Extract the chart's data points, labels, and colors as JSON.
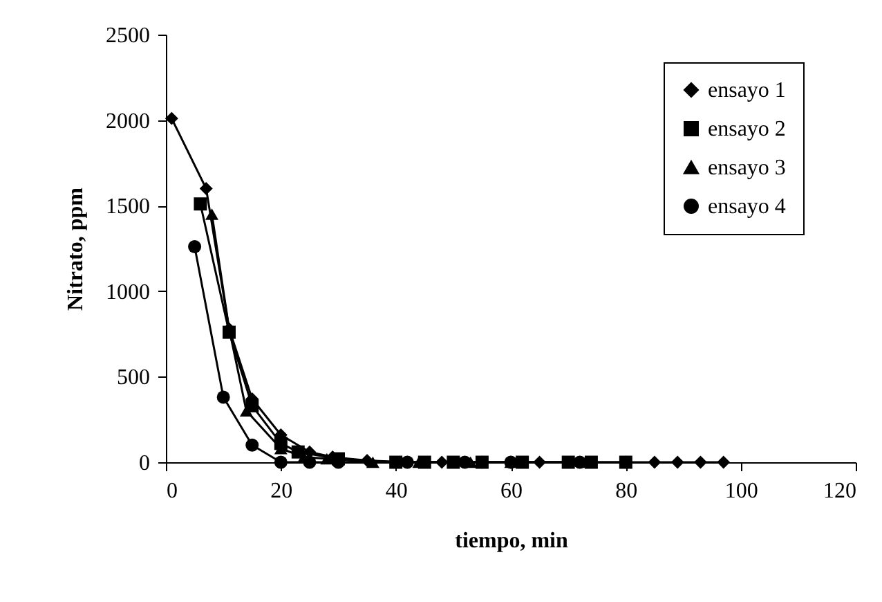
{
  "chart_data": {
    "type": "line",
    "xlabel": "tiempo, min",
    "ylabel": "Nitrato, ppm",
    "xlim": [
      0,
      120
    ],
    "xticks": [
      0,
      20,
      40,
      60,
      80,
      100,
      120
    ],
    "ylim": [
      0,
      2500
    ],
    "yticks": [
      0,
      500,
      1000,
      1500,
      2000,
      2500
    ],
    "grid": false,
    "legend": "top right",
    "series": [
      {
        "name": "ensayo 1",
        "color": "#000000",
        "marker": "diamond",
        "x": [
          1,
          7,
          11,
          15,
          20,
          25,
          29,
          35,
          42,
          48,
          55,
          60,
          65,
          72,
          80,
          85,
          89,
          93,
          97
        ],
        "values": [
          2010,
          1600,
          780,
          370,
          160,
          60,
          30,
          10,
          0,
          0,
          0,
          0,
          0,
          0,
          0,
          0,
          0,
          0,
          0
        ]
      },
      {
        "name": "ensayo 2",
        "color": "#000000",
        "marker": "square",
        "x": [
          6,
          11,
          15,
          20,
          23,
          30,
          40,
          45,
          50,
          55,
          62,
          70,
          74,
          80
        ],
        "values": [
          1510,
          760,
          330,
          110,
          60,
          20,
          0,
          0,
          0,
          0,
          0,
          0,
          0,
          0
        ]
      },
      {
        "name": "ensayo 3",
        "color": "#000000",
        "marker": "triangle",
        "x": [
          8,
          11,
          14,
          20,
          24,
          28,
          36,
          44,
          53,
          60,
          73
        ],
        "values": [
          1450,
          780,
          300,
          80,
          30,
          20,
          0,
          0,
          0,
          0,
          0
        ]
      },
      {
        "name": "ensayo 4",
        "color": "#000000",
        "marker": "circle",
        "x": [
          5,
          10,
          15,
          20,
          25,
          30,
          42,
          52,
          60,
          72
        ],
        "values": [
          1260,
          380,
          100,
          0,
          0,
          0,
          0,
          0,
          0,
          0
        ]
      }
    ]
  }
}
